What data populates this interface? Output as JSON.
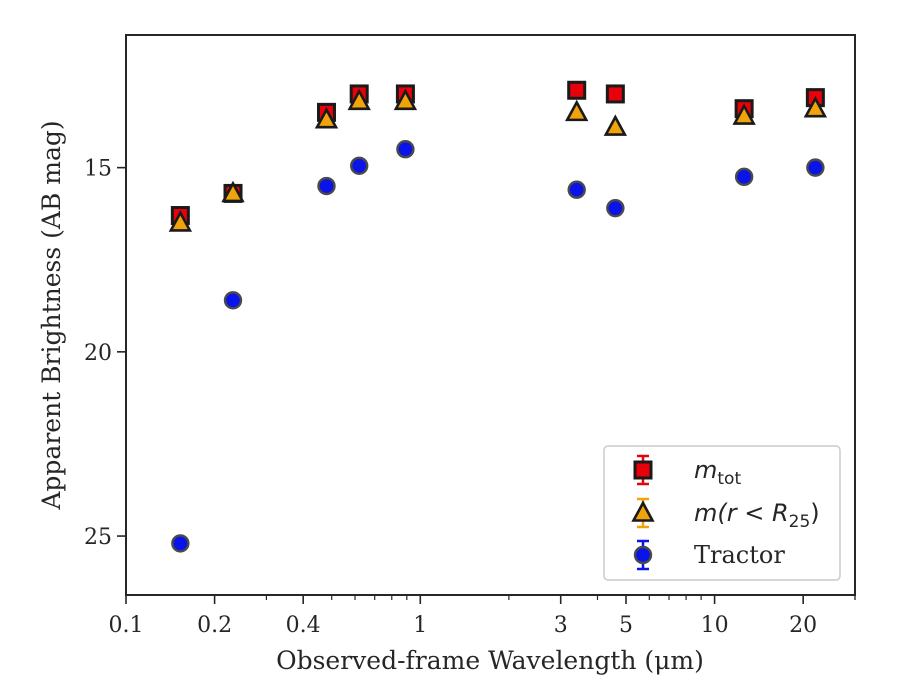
{
  "chart_data": {
    "type": "scatter",
    "xlabel": "Observed-frame Wavelength (μm)",
    "ylabel": "Apparent Brightness (AB mag)",
    "x_scale": "log",
    "y_inverted": true,
    "xlim": [
      0.1,
      30
    ],
    "ylim": [
      26.6,
      11.4
    ],
    "x_ticks": [
      0.1,
      0.2,
      0.4,
      1,
      3,
      5,
      10,
      20
    ],
    "x_tick_labels": [
      "0.1",
      "0.2",
      "0.4",
      "1",
      "3",
      "5",
      "10",
      "20"
    ],
    "y_ticks": [
      15,
      20,
      25
    ],
    "y_tick_labels": [
      "15",
      "20",
      "25"
    ],
    "grid": false,
    "legend_position": "lower-right",
    "series": [
      {
        "name": "m_tot",
        "legend_label": {
          "main": "m",
          "sub": "tot"
        },
        "marker": "square",
        "color": "#e8000b",
        "edge": "#1a1a1a",
        "x": [
          0.153,
          0.231,
          0.48,
          0.62,
          0.89,
          3.4,
          4.6,
          12.6,
          22.0
        ],
        "y": [
          16.3,
          15.7,
          13.5,
          13.0,
          13.0,
          12.9,
          13.0,
          13.4,
          13.1
        ]
      },
      {
        "name": "m(r < R_25)",
        "legend_label": {
          "main": "m(r < R",
          "sub": "25",
          "tail": ")"
        },
        "marker": "triangle",
        "color": "#f0a30a",
        "edge": "#1a1a1a",
        "x": [
          0.153,
          0.231,
          0.48,
          0.62,
          0.89,
          3.4,
          4.6,
          12.6,
          22.0
        ],
        "y": [
          16.5,
          15.7,
          13.7,
          13.2,
          13.2,
          13.5,
          13.9,
          13.6,
          13.4
        ]
      },
      {
        "name": "Tractor",
        "legend_label": {
          "main": "Tractor"
        },
        "marker": "circle",
        "color": "#0a14e8",
        "edge": "#4a4a4a",
        "x": [
          0.153,
          0.231,
          0.48,
          0.62,
          0.89,
          3.4,
          4.6,
          12.6,
          22.0
        ],
        "y": [
          25.2,
          18.6,
          15.5,
          14.95,
          14.5,
          15.6,
          16.1,
          15.25,
          15.0
        ]
      }
    ]
  }
}
